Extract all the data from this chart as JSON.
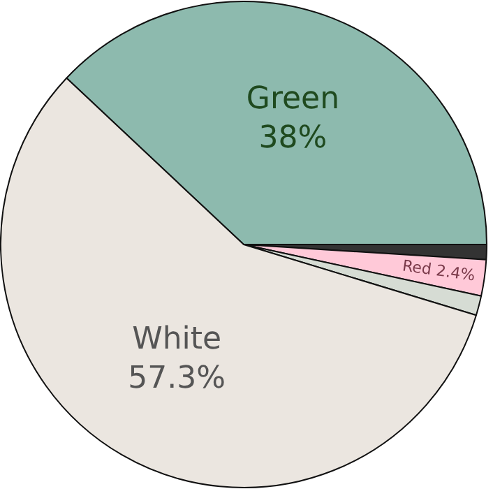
{
  "chart_data": {
    "type": "pie",
    "categories": [
      "Green",
      null,
      "Red",
      null,
      "White"
    ],
    "values": [
      38,
      1.0,
      2.4,
      1.3,
      57.3
    ],
    "colors": [
      "#8dbaae",
      "#333333",
      "#ffc9d8",
      "#d6dcd4",
      "#ebe6e0"
    ],
    "value_labels": [
      "38%",
      null,
      "2.4%",
      null,
      "57.3%"
    ]
  }
}
